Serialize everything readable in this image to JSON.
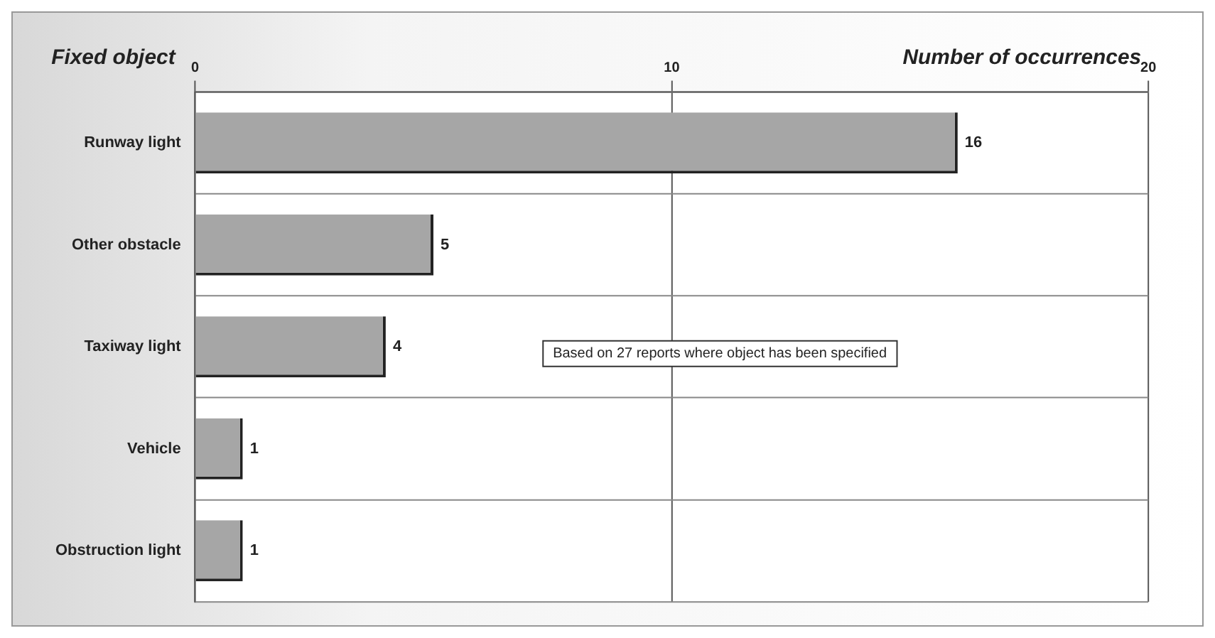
{
  "chart_data": {
    "type": "bar",
    "orientation": "horizontal",
    "xlabel": "Number of occurrences",
    "ylabel": "Fixed object",
    "categories": [
      "Runway light",
      "Other obstacle",
      "Taxiway light",
      "Vehicle",
      "Obstruction light"
    ],
    "values": [
      16,
      5,
      4,
      1,
      1
    ],
    "color": "#a6a6a6",
    "xlim": [
      0,
      20
    ],
    "xticks": [
      0,
      10,
      20
    ],
    "grid": true,
    "data_labels": true,
    "legend": false,
    "annotations": [
      "Based on 27 reports where object has been specified"
    ]
  }
}
